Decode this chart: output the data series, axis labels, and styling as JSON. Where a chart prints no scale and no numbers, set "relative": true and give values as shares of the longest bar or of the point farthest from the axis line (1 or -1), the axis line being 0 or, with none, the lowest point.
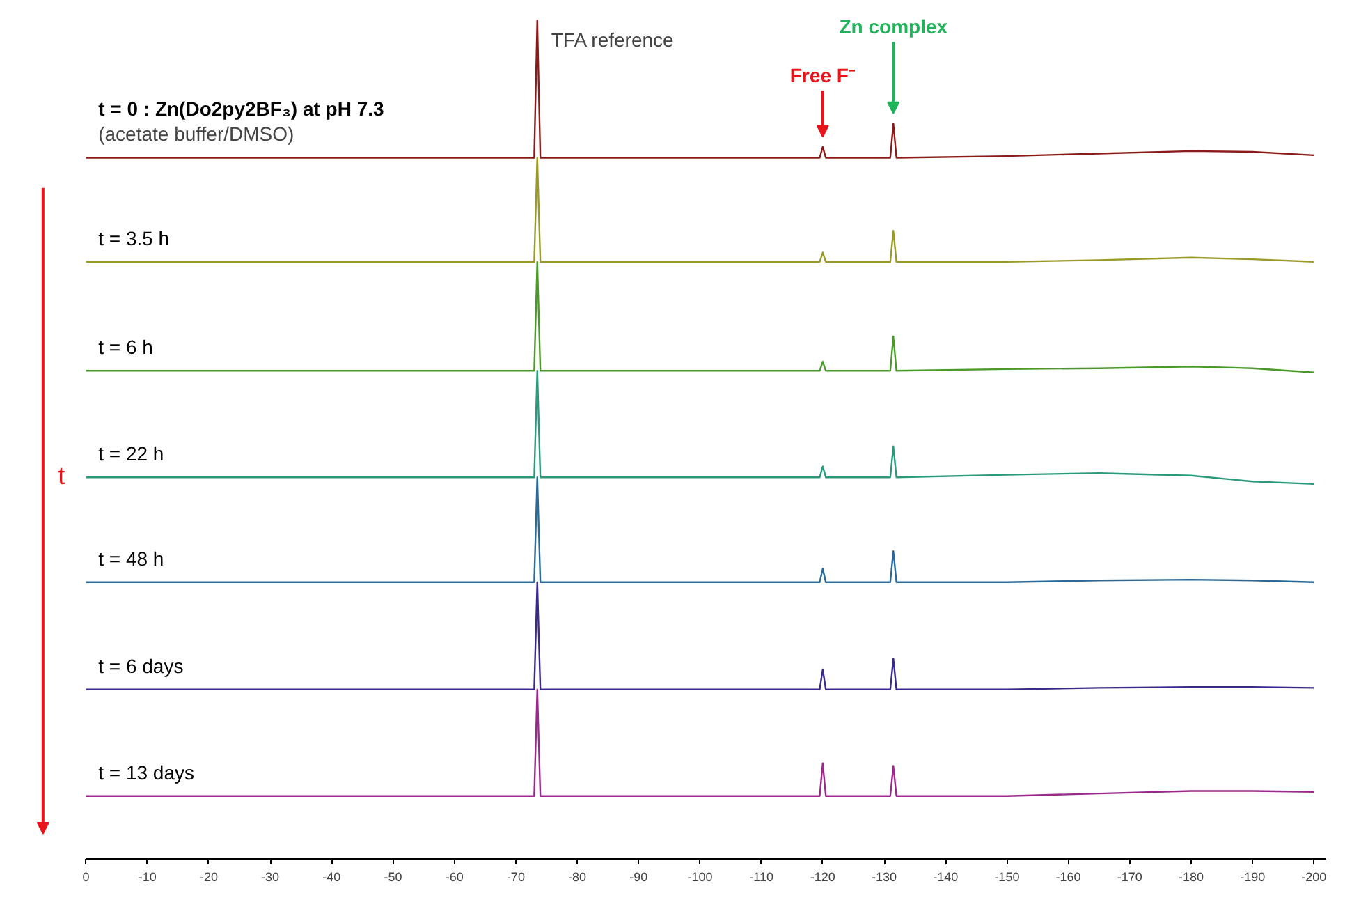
{
  "chart_data": {
    "type": "line",
    "relative": true,
    "xlim": [
      0,
      -202
    ],
    "xticks": [
      0,
      -10,
      -20,
      -30,
      -40,
      -50,
      -60,
      -70,
      -80,
      -90,
      -100,
      -110,
      -120,
      -130,
      -140,
      -150,
      -160,
      -170,
      -180,
      -190,
      -200
    ],
    "grid": false,
    "marker": "none",
    "line_style": "solid",
    "x": [
      0,
      -50,
      -73,
      -73.5,
      -74,
      -119.5,
      -120,
      -120.5,
      -131,
      -131.5,
      -132,
      -150,
      -165,
      -180,
      -190,
      -200
    ],
    "series": [
      {
        "name": "t = 0 : Zn(Do2py2BF₃) at pH 7.3",
        "color": "#8b1a1a",
        "values": [
          0.836,
          0.836,
          0.836,
          1.0,
          0.836,
          0.836,
          0.849,
          0.836,
          0.836,
          0.877,
          0.836,
          0.838,
          0.841,
          0.844,
          0.843,
          0.839
        ]
      },
      {
        "name": "t = 3.5 h",
        "color": "#9a9a2a",
        "values": [
          0.712,
          0.712,
          0.712,
          0.836,
          0.712,
          0.712,
          0.723,
          0.712,
          0.712,
          0.749,
          0.712,
          0.712,
          0.714,
          0.717,
          0.715,
          0.712
        ]
      },
      {
        "name": "t = 6 h",
        "color": "#4a9a2a",
        "values": [
          0.582,
          0.582,
          0.582,
          0.712,
          0.582,
          0.582,
          0.593,
          0.582,
          0.582,
          0.623,
          0.582,
          0.584,
          0.585,
          0.587,
          0.585,
          0.58
        ]
      },
      {
        "name": "t = 22 h",
        "color": "#2a9a7a",
        "values": [
          0.455,
          0.455,
          0.455,
          0.582,
          0.455,
          0.455,
          0.468,
          0.455,
          0.455,
          0.492,
          0.455,
          0.458,
          0.46,
          0.457,
          0.45,
          0.447
        ]
      },
      {
        "name": "t = 48 h",
        "color": "#2a6a9a",
        "values": [
          0.33,
          0.33,
          0.33,
          0.455,
          0.33,
          0.33,
          0.346,
          0.33,
          0.33,
          0.367,
          0.33,
          0.33,
          0.332,
          0.333,
          0.332,
          0.33
        ]
      },
      {
        "name": "t = 6 days",
        "color": "#3a2a8a",
        "values": [
          0.202,
          0.202,
          0.202,
          0.33,
          0.202,
          0.202,
          0.226,
          0.202,
          0.202,
          0.239,
          0.202,
          0.202,
          0.204,
          0.205,
          0.205,
          0.204
        ]
      },
      {
        "name": "t = 13 days",
        "color": "#9a2a8a",
        "values": [
          0.075,
          0.075,
          0.075,
          0.202,
          0.075,
          0.075,
          0.114,
          0.075,
          0.075,
          0.111,
          0.075,
          0.075,
          0.078,
          0.081,
          0.081,
          0.08
        ]
      }
    ],
    "annotations": [
      "(acetate buffer/DMSO)",
      {
        "text": "TFA reference",
        "x": -73.5,
        "y": 1.0
      },
      "Free F⁻",
      "Zn complex",
      "t"
    ]
  }
}
